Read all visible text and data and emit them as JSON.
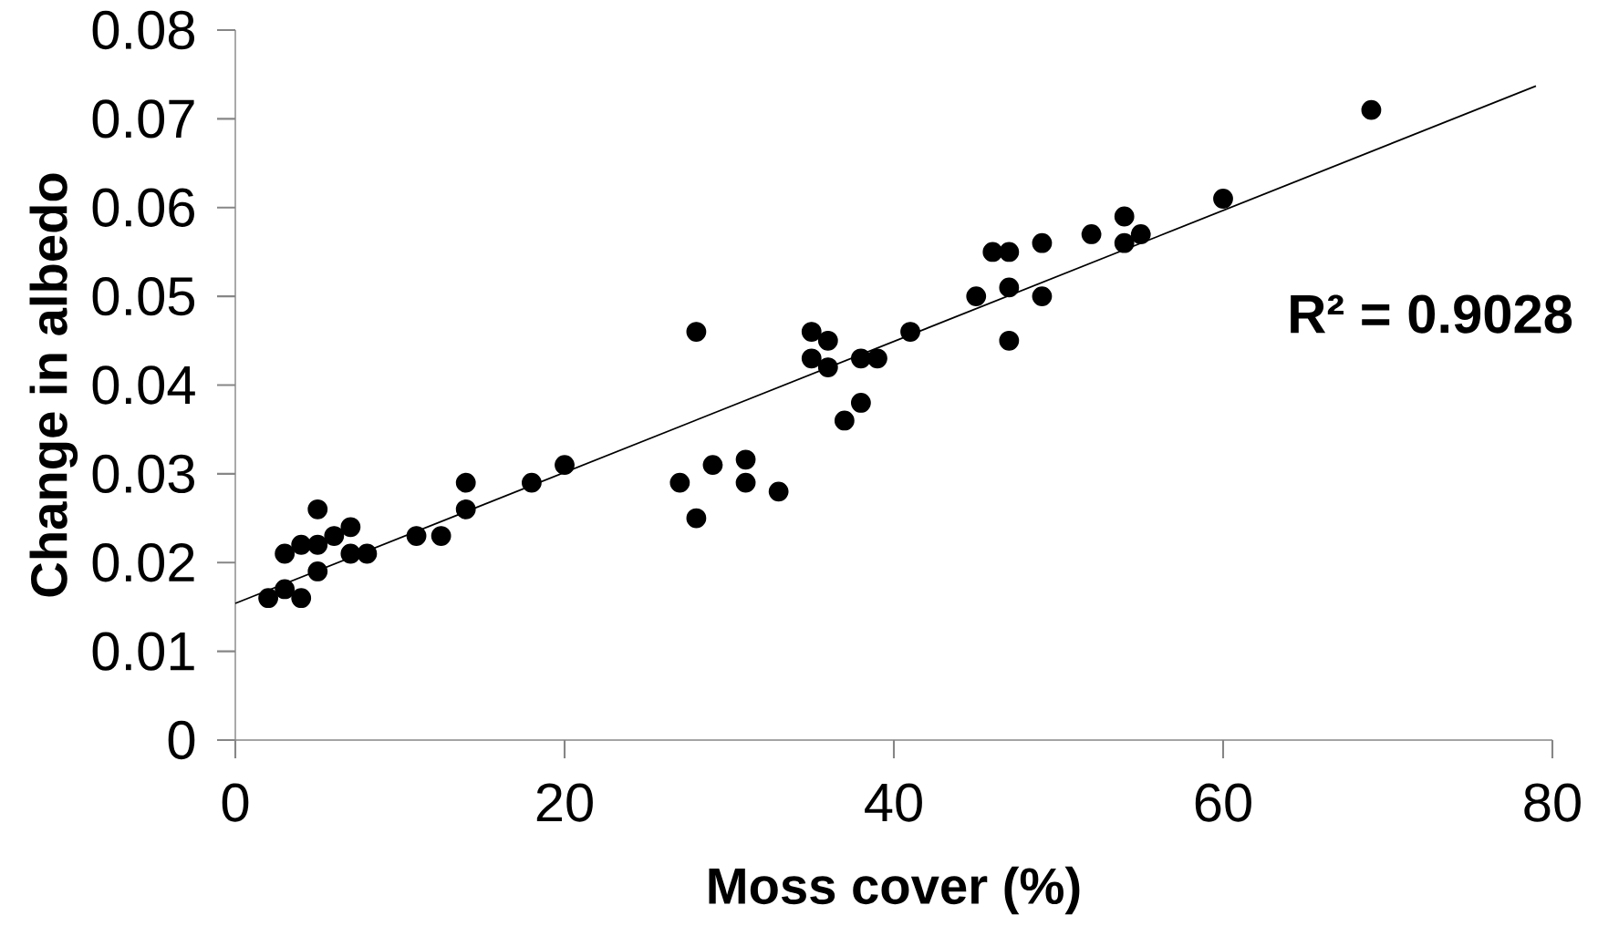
{
  "chart_data": {
    "type": "scatter",
    "xlabel": "Moss cover (%)",
    "ylabel": "Change in albedo",
    "xlim": [
      0,
      80
    ],
    "ylim": [
      0,
      0.08
    ],
    "xticks": [
      0,
      20,
      40,
      60,
      80
    ],
    "yticks": [
      0,
      0.01,
      0.02,
      0.03,
      0.04,
      0.05,
      0.06,
      0.07,
      0.08
    ],
    "annotations": [
      "R² = 0.9028"
    ],
    "series": [
      {
        "color": "#000000",
        "marker": "circle",
        "x": [
          2,
          3,
          3,
          4,
          4,
          5,
          5,
          5,
          6,
          7,
          7,
          8,
          11,
          12.5,
          14,
          14,
          18,
          20,
          27,
          28,
          28,
          29,
          31,
          31,
          33,
          35,
          35,
          36,
          36,
          37,
          38,
          38,
          39,
          41,
          45,
          46,
          47,
          47,
          47,
          49,
          49,
          52,
          54,
          54,
          55,
          60,
          69
        ],
        "values": [
          0.016,
          0.021,
          0.017,
          0.022,
          0.016,
          0.026,
          0.022,
          0.019,
          0.023,
          0.024,
          0.021,
          0.021,
          0.023,
          0.023,
          0.029,
          0.026,
          0.029,
          0.031,
          0.029,
          0.046,
          0.025,
          0.031,
          0.0316,
          0.029,
          0.028,
          0.046,
          0.043,
          0.045,
          0.042,
          0.036,
          0.043,
          0.038,
          0.043,
          0.046,
          0.05,
          0.055,
          0.055,
          0.051,
          0.045,
          0.056,
          0.05,
          0.057,
          0.059,
          0.056,
          0.057,
          0.061,
          0.071
        ]
      },
      {
        "type": "line",
        "color": "#000000",
        "marker": "none",
        "x": [
          0,
          79
        ],
        "values": [
          0.0154,
          0.0737
        ]
      }
    ]
  }
}
